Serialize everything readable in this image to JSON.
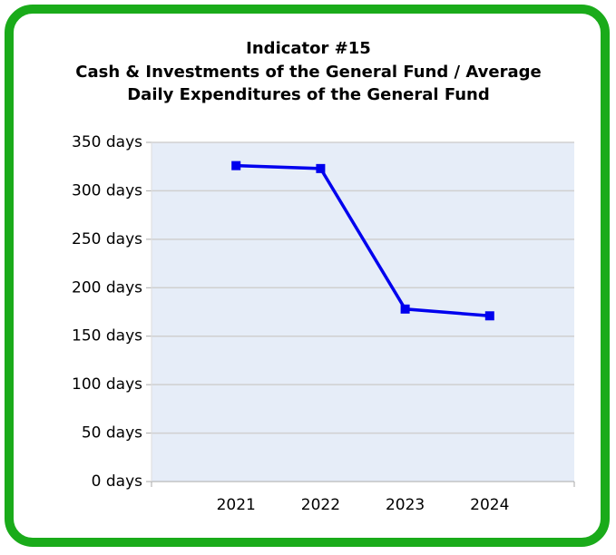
{
  "chart_data": {
    "type": "line",
    "title": "Indicator #15",
    "subtitle": [
      "Cash & Investments of the General Fund / Average",
      "Daily Expenditures of the General Fund"
    ],
    "x": [
      2021,
      2022,
      2023,
      2024
    ],
    "series": [
      {
        "name": "Indicator #15",
        "color": "#0000ee",
        "values": [
          326,
          323,
          178,
          171
        ]
      }
    ],
    "xlim": [
      2020,
      2025
    ],
    "xticks": [
      2021,
      2022,
      2023,
      2024
    ],
    "ylim": [
      0,
      350
    ],
    "yticks": [
      {
        "value": 0,
        "label": "0 days"
      },
      {
        "value": 50,
        "label": "50 days"
      },
      {
        "value": 100,
        "label": "100 days"
      },
      {
        "value": 150,
        "label": "150 days"
      },
      {
        "value": 200,
        "label": "200 days"
      },
      {
        "value": 250,
        "label": "250 days"
      },
      {
        "value": 300,
        "label": "300 days"
      },
      {
        "value": 350,
        "label": "350 days"
      }
    ],
    "grid": true
  }
}
